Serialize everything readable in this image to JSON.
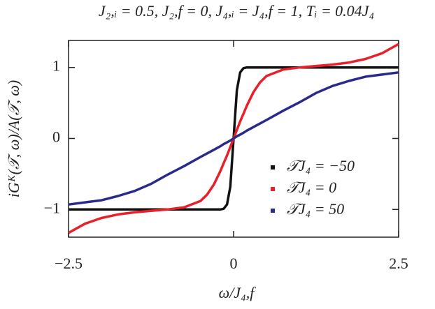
{
  "chart_data": {
    "type": "line",
    "title": "J₂,ᵢ = 0.5, J₂,f = 0, J₄,ᵢ = J₄,f = 1, Tᵢ = 0.04J₄",
    "x_label": "ω/J₄,f",
    "y_label": "iGᴷ(𝒯, ω)/A(𝒯, ω)",
    "x": [
      -2.5,
      -2.25,
      -2,
      -1.75,
      -1.5,
      -1.25,
      -1,
      -0.75,
      -0.5,
      -0.4,
      -0.3,
      -0.2,
      -0.15,
      -0.1,
      -0.05,
      0,
      0.05,
      0.1,
      0.15,
      0.2,
      0.3,
      0.4,
      0.5,
      0.75,
      1,
      1.25,
      1.5,
      1.75,
      2,
      2.25,
      2.5
    ],
    "series": [
      {
        "name": "𝒯J₄ = −50",
        "color": "#111111",
        "values": [
          -1,
          -1,
          -1,
          -1,
          -1,
          -1,
          -1,
          -1,
          -1,
          -1,
          -1,
          -1,
          -0.99,
          -0.93,
          -0.68,
          0,
          0.68,
          0.93,
          0.99,
          1,
          1,
          1,
          1,
          1,
          1,
          1,
          1,
          1,
          1,
          1,
          1
        ]
      },
      {
        "name": "𝒯J₄ = 0",
        "color": "#e8202a",
        "values": [
          -1.33,
          -1.2,
          -1.12,
          -1.07,
          -1.04,
          -1.02,
          -1,
          -0.97,
          -0.88,
          -0.79,
          -0.65,
          -0.46,
          -0.35,
          -0.24,
          -0.12,
          0,
          0.12,
          0.24,
          0.35,
          0.46,
          0.65,
          0.79,
          0.88,
          0.97,
          1,
          1.02,
          1.04,
          1.07,
          1.12,
          1.2,
          1.33
        ]
      },
      {
        "name": "𝒯J₄ = 50",
        "color": "#2a2a8c",
        "values": [
          -0.93,
          -0.9,
          -0.87,
          -0.81,
          -0.74,
          -0.64,
          -0.51,
          -0.39,
          -0.26,
          -0.21,
          -0.16,
          -0.11,
          -0.08,
          -0.055,
          -0.03,
          0,
          0.03,
          0.055,
          0.08,
          0.11,
          0.16,
          0.21,
          0.26,
          0.39,
          0.51,
          0.64,
          0.74,
          0.81,
          0.87,
          0.9,
          0.93
        ]
      }
    ],
    "xlim": [
      -2.5,
      2.5
    ],
    "ylim": [
      -1.39,
      1.38
    ],
    "xticks": [
      {
        "value": -2.5,
        "label": "−2.5"
      },
      0,
      2.5
    ],
    "yticks": [
      {
        "value": -1,
        "label": "−1"
      },
      0,
      1
    ],
    "legend": "lower right"
  }
}
